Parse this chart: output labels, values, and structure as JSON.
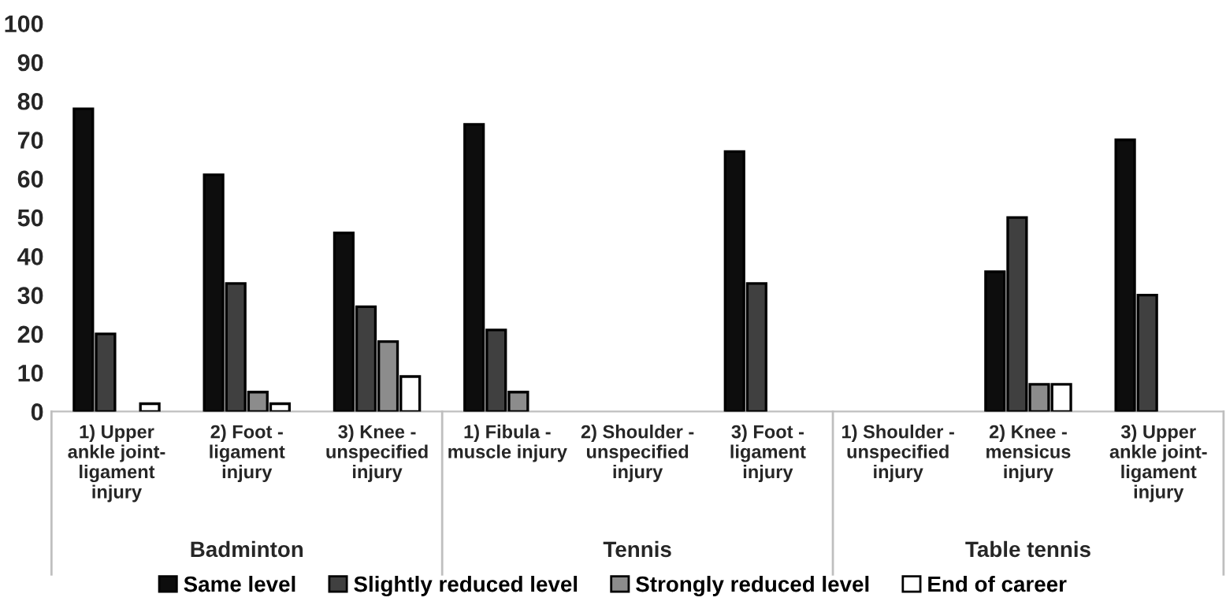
{
  "chart_data": {
    "type": "bar",
    "categories": [
      "1) Upper\nankle joint-\nligament\ninjury",
      "2) Foot -\nligament\ninjury",
      "3) Knee -\nunspecified\ninjury",
      "1) Fibula -\nmuscle injury",
      "2) Shoulder -\nunspecified\ninjury",
      "3) Foot -\nligament\ninjury",
      "1) Shoulder -\nunspecified\ninjury",
      "2) Knee -\nmensicus\ninjury",
      "3) Upper\nankle joint-\nligament\ninjury"
    ],
    "series": [
      {
        "name": "Same level",
        "color": "#0d0d0d",
        "values": [
          78,
          61,
          46,
          74,
          null,
          67,
          null,
          36,
          70
        ]
      },
      {
        "name": "Slightly reduced level",
        "color": "#404040",
        "values": [
          20,
          33,
          27,
          21,
          null,
          33,
          null,
          50,
          30
        ]
      },
      {
        "name": "Strongly reduced level",
        "color": "#8c8c8c",
        "values": [
          null,
          5,
          18,
          5,
          null,
          null,
          null,
          7,
          null
        ]
      },
      {
        "name": "End of career",
        "color": "#ffffff",
        "values": [
          2,
          2,
          9,
          null,
          null,
          null,
          null,
          7,
          null
        ]
      }
    ],
    "annotations": [
      "Badminton",
      "Tennis",
      "Table tennis"
    ],
    "ylim": [
      0,
      100
    ],
    "yticks": [
      0,
      10,
      20,
      30,
      40,
      50,
      60,
      70,
      80,
      90,
      100
    ],
    "legend": "bottom"
  }
}
